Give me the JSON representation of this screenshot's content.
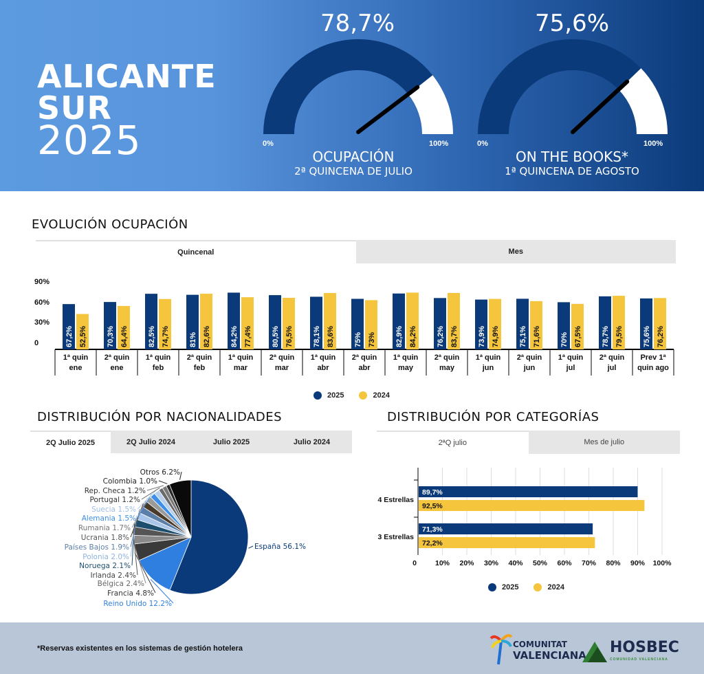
{
  "header": {
    "title_line1": "ALICANTE",
    "title_line2": "SUR",
    "title_line3": "2025",
    "gauges": [
      {
        "value_text": "78,7%",
        "value": 78.7,
        "min_label": "0%",
        "max_label": "100%",
        "caption": "OCUPACIÓN",
        "subcaption": "2ª QUINCENA DE JULIO"
      },
      {
        "value_text": "75,6%",
        "value": 75.6,
        "min_label": "0%",
        "max_label": "100%",
        "caption": "ON THE BOOKS*",
        "subcaption": "1ª QUINCENA DE AGOSTO"
      }
    ]
  },
  "colors": {
    "series_2025": "#0b3a7a",
    "series_2024": "#f5c53d",
    "gauge_fill": "#0b3a7a",
    "gauge_empty": "#ffffff"
  },
  "evolucion": {
    "title": "EVOLUCIÓN OCUPACIÓN",
    "tabs": [
      "Quincenal",
      "Mes"
    ],
    "active_tab": "Quincenal",
    "legend": [
      "2025",
      "2024"
    ]
  },
  "nacionalidades": {
    "title": "DISTRIBUCIÓN POR NACIONALIDADES",
    "tabs": [
      "2Q Julio 2025",
      "2Q Julio 2024",
      "Julio 2025",
      "Julio 2024"
    ],
    "active_tab": "2Q Julio 2025"
  },
  "categorias": {
    "title": "DISTRIBUCIÓN POR CATEGORÍAS",
    "tabs": [
      "2ªQ julio",
      "Mes de julio"
    ],
    "active_tab": "2ªQ julio",
    "legend": [
      "2025",
      "2024"
    ]
  },
  "footer": {
    "note": "*Reservas existentes en los sistemas de gestión hotelera",
    "logo1_line1": "COMUNITAT",
    "logo1_line2": "VALENCIANA",
    "logo2_name": "HOSBEC",
    "logo2_sub": "COMUNIDAD VALENCIANA"
  },
  "chart_data": [
    {
      "type": "bar",
      "title": "EVOLUCIÓN OCUPACIÓN",
      "categories_line1": [
        "1ª quin",
        "2ª quin",
        "1ª quin",
        "2ª quin",
        "1ª quin",
        "2ª quin",
        "1ª quin",
        "2ª quin",
        "1ª quin",
        "2ª quin",
        "1ª quin",
        "2ª quin",
        "1ª quin",
        "2ª quin",
        "Prev 1ª"
      ],
      "categories_line2": [
        "ene",
        "ene",
        "feb",
        "feb",
        "mar",
        "mar",
        "abr",
        "abr",
        "may",
        "may",
        "jun",
        "jun",
        "jul",
        "jul",
        "quin ago"
      ],
      "y_ticks": [
        "0",
        "30%",
        "60%",
        "90%"
      ],
      "ylim": [
        0,
        100
      ],
      "series": [
        {
          "name": "2025",
          "values": [
            67.2,
            70.3,
            82.5,
            81,
            84.2,
            80.5,
            78.1,
            75,
            82.9,
            76.2,
            73.9,
            75.1,
            70,
            78.7,
            75.6
          ],
          "labels": [
            "67,2%",
            "70,3%",
            "82,5%",
            "81%",
            "84,2%",
            "80,5%",
            "78,1%",
            "75%",
            "82,9%",
            "76,2%",
            "73,9%",
            "75,1%",
            "70%",
            "78,7%",
            "75,6%"
          ]
        },
        {
          "name": "2024",
          "values": [
            52.5,
            64.4,
            74.7,
            82.6,
            77.4,
            76.5,
            83.6,
            73,
            84.2,
            83.7,
            74.9,
            71.6,
            67.5,
            79.5,
            76.2
          ],
          "labels": [
            "52,5%",
            "64,4%",
            "74,7%",
            "82,6%",
            "77,4%",
            "76,5%",
            "83,6%",
            "73%",
            "84,2%",
            "83,7%",
            "74,9%",
            "71,6%",
            "67,5%",
            "79,5%",
            "76,2%"
          ]
        }
      ]
    },
    {
      "type": "pie",
      "title": "DISTRIBUCIÓN POR NACIONALIDADES",
      "slices": [
        {
          "label": "España",
          "value": 56.1,
          "text": "España 56.1%",
          "color": "#0b3a7a",
          "label_color": "#0b3a7a"
        },
        {
          "label": "Reino Unido",
          "value": 12.2,
          "text": "Reino Unido 12.2%",
          "color": "#2f7fe0",
          "label_color": "#2f7fe0"
        },
        {
          "label": "Francia",
          "value": 4.8,
          "text": "Francia 4.8%",
          "color": "#3a3a3a",
          "label_color": "#333333"
        },
        {
          "label": "Bélgica",
          "value": 2.4,
          "text": "Bélgica 2.4%",
          "color": "#8a8a8a",
          "label_color": "#666666"
        },
        {
          "label": "Irlanda",
          "value": 2.4,
          "text": "Irlanda 2.4%",
          "color": "#555555",
          "label_color": "#444444"
        },
        {
          "label": "Noruega",
          "value": 2.1,
          "text": "Noruega 2.1%",
          "color": "#1d4e6e",
          "label_color": "#1d4e6e"
        },
        {
          "label": "Polonia",
          "value": 2.0,
          "text": "Polonia 2.0%",
          "color": "#a9c6ea",
          "label_color": "#8fb3e0"
        },
        {
          "label": "Países Bajos",
          "value": 1.9,
          "text": "Países Bajos 1.9%",
          "color": "#5b7fa8",
          "label_color": "#5b7fa8"
        },
        {
          "label": "Ucrania",
          "value": 1.8,
          "text": "Ucrania 1.8%",
          "color": "#4a3a2a",
          "label_color": "#555555"
        },
        {
          "label": "Rumania",
          "value": 1.7,
          "text": "Rumania 1.7%",
          "color": "#9a9a9a",
          "label_color": "#777777"
        },
        {
          "label": "Alemania",
          "value": 1.5,
          "text": "Alemania 1.5%",
          "color": "#3d8fe8",
          "label_color": "#3d8fe8"
        },
        {
          "label": "Suecia",
          "value": 1.5,
          "text": "Suecia 1.5%",
          "color": "#b8d0ee",
          "label_color": "#a0bde4"
        },
        {
          "label": "Portugal",
          "value": 1.2,
          "text": "Portugal 1.2%",
          "color": "#6a6a6a",
          "label_color": "#333333"
        },
        {
          "label": "Rep. Checa",
          "value": 1.2,
          "text": "Rep. Checa 1.2%",
          "color": "#7a7a7a",
          "label_color": "#333333"
        },
        {
          "label": "Colombia",
          "value": 1.0,
          "text": "Colombia 1.0%",
          "color": "#2a2a2a",
          "label_color": "#222222"
        },
        {
          "label": "Otros",
          "value": 6.2,
          "text": "Otros 6.2%",
          "color": "#0a0a0a",
          "label_color": "#222222"
        }
      ]
    },
    {
      "type": "bar",
      "orientation": "horizontal",
      "title": "DISTRIBUCIÓN POR CATEGORÍAS",
      "categories": [
        "4 Estrellas",
        "3 Estrellas"
      ],
      "x_ticks": [
        "0",
        "10%",
        "20%",
        "30%",
        "40%",
        "50%",
        "60%",
        "70%",
        "80%",
        "90%",
        "100%"
      ],
      "xlim": [
        0,
        100
      ],
      "series": [
        {
          "name": "2025",
          "values": [
            89.7,
            71.3
          ],
          "labels": [
            "89,7%",
            "71,3%"
          ]
        },
        {
          "name": "2024",
          "values": [
            92.5,
            72.2
          ],
          "labels": [
            "92,5%",
            "72,2%"
          ]
        }
      ]
    }
  ]
}
